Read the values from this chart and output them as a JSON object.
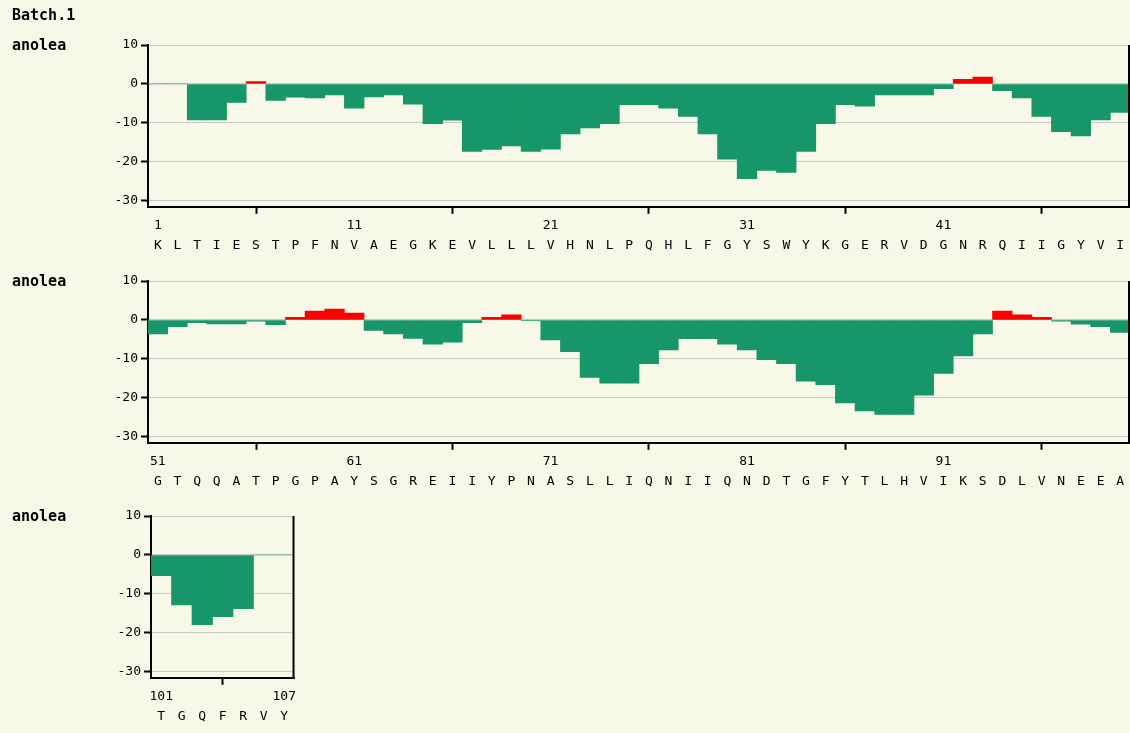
{
  "chart_data": [
    {
      "type": "bar",
      "title": "Batch.1",
      "ylabel": "anolea",
      "categories": [
        "K",
        "L",
        "T",
        "I",
        "E",
        "S",
        "T",
        "P",
        "F",
        "N",
        "V",
        "A",
        "E",
        "G",
        "K",
        "E",
        "V",
        "L",
        "L",
        "L",
        "V",
        "H",
        "N",
        "L",
        "P",
        "Q",
        "H",
        "L",
        "F",
        "G",
        "Y",
        "S",
        "W",
        "Y",
        "K",
        "G",
        "E",
        "R",
        "V",
        "D",
        "G",
        "N",
        "R",
        "Q",
        "I",
        "I",
        "G",
        "Y",
        "V",
        "I"
      ],
      "values": [
        0,
        0,
        -9.2,
        -9.2,
        -4.7,
        0.6,
        -4.2,
        -3.4,
        -3.6,
        -2.8,
        -6.2,
        -3.3,
        -2.8,
        -5.2,
        -10.2,
        -9.3,
        -17.3,
        -16.8,
        -15.9,
        -17.3,
        -16.7,
        -12.8,
        -11.3,
        -10.2,
        -5.3,
        -5.3,
        -6.2,
        -8.3,
        -12.8,
        -19.3,
        -24.3,
        -22.2,
        -22.7,
        -17.3,
        -10.2,
        -5.3,
        -5.7,
        -2.8,
        -2.8,
        -2.8,
        -1.2,
        1.2,
        1.8,
        -1.7,
        -3.6,
        -8.3,
        -12.2,
        -13.3,
        -9.2,
        -7.3
      ],
      "colors": [
        "#179669",
        "#179669",
        "#179669",
        "#179669",
        "#179669",
        "#ff0000",
        "#179669",
        "#179669",
        "#179669",
        "#179669",
        "#179669",
        "#179669",
        "#179669",
        "#179669",
        "#179669",
        "#179669",
        "#179669",
        "#179669",
        "#179669",
        "#179669",
        "#179669",
        "#179669",
        "#179669",
        "#179669",
        "#179669",
        "#179669",
        "#179669",
        "#179669",
        "#179669",
        "#179669",
        "#179669",
        "#179669",
        "#179669",
        "#179669",
        "#179669",
        "#179669",
        "#179669",
        "#179669",
        "#179669",
        "#179669",
        "#179669",
        "#ff0000",
        "#ff0000",
        "#179669",
        "#179669",
        "#179669",
        "#179669",
        "#179669",
        "#179669",
        "#179669"
      ],
      "x2lim": [
        0.5,
        50.5
      ],
      "x2ticks": [
        1,
        11,
        21,
        31,
        41
      ],
      "ylim": [
        -31.5,
        10
      ],
      "yticks": [
        10,
        0,
        -10,
        -20,
        -30
      ],
      "grid": "y"
    },
    {
      "type": "bar",
      "ylabel": "anolea",
      "categories": [
        "G",
        "T",
        "Q",
        "Q",
        "A",
        "T",
        "P",
        "G",
        "P",
        "A",
        "Y",
        "S",
        "G",
        "R",
        "E",
        "I",
        "I",
        "Y",
        "P",
        "N",
        "A",
        "S",
        "L",
        "L",
        "I",
        "Q",
        "N",
        "I",
        "I",
        "Q",
        "N",
        "D",
        "T",
        "G",
        "F",
        "Y",
        "T",
        "L",
        "H",
        "V",
        "I",
        "K",
        "S",
        "D",
        "L",
        "V",
        "N",
        "E",
        "E",
        "A"
      ],
      "values": [
        -3.6,
        -1.7,
        -0.7,
        -1,
        -1,
        -0.3,
        -1.2,
        0.7,
        2.3,
        2.8,
        1.8,
        -2.7,
        -3.6,
        -4.7,
        -6.2,
        -5.7,
        -0.7,
        0.7,
        1.3,
        -0.2,
        -5.1,
        -8.1,
        -14.7,
        -16.2,
        -16.2,
        -11.2,
        -7.7,
        -4.8,
        -4.8,
        -6.2,
        -7.7,
        -10.2,
        -11.2,
        -15.7,
        -16.6,
        -21.3,
        -23.3,
        -24.2,
        -24.2,
        -19.3,
        -13.7,
        -9.2,
        -3.6,
        2.3,
        1.3,
        0.7,
        -0.3,
        -1.1,
        -1.7,
        -3.2
      ],
      "colors": [
        "#179669",
        "#179669",
        "#179669",
        "#179669",
        "#179669",
        "#179669",
        "#179669",
        "#ff0000",
        "#ff0000",
        "#ff0000",
        "#ff0000",
        "#179669",
        "#179669",
        "#179669",
        "#179669",
        "#179669",
        "#179669",
        "#ff0000",
        "#ff0000",
        "#179669",
        "#179669",
        "#179669",
        "#179669",
        "#179669",
        "#179669",
        "#179669",
        "#179669",
        "#179669",
        "#179669",
        "#179669",
        "#179669",
        "#179669",
        "#179669",
        "#179669",
        "#179669",
        "#179669",
        "#179669",
        "#179669",
        "#179669",
        "#179669",
        "#179669",
        "#179669",
        "#179669",
        "#ff0000",
        "#ff0000",
        "#ff0000",
        "#179669",
        "#179669",
        "#179669",
        "#179669"
      ],
      "x2lim": [
        50.5,
        100.5
      ],
      "x2ticks": [
        51,
        61,
        71,
        81,
        91
      ],
      "ylim": [
        -31.5,
        10
      ],
      "yticks": [
        10,
        0,
        -10,
        -20,
        -30
      ],
      "grid": "y"
    },
    {
      "type": "bar",
      "ylabel": "anolea",
      "categories": [
        "T",
        "G",
        "Q",
        "F",
        "R",
        "V",
        "Y"
      ],
      "values": [
        -5.3,
        -12.8,
        -17.9,
        -15.8,
        -13.8,
        0,
        0
      ],
      "colors": [
        "#179669",
        "#179669",
        "#179669",
        "#179669",
        "#179669",
        "#179669",
        "#179669"
      ],
      "x2lim": [
        100.5,
        107.5
      ],
      "x2ticks": [
        101,
        107
      ],
      "ylim": [
        -31.5,
        10
      ],
      "yticks": [
        10,
        0,
        -10,
        -20,
        -30
      ],
      "grid": "y"
    }
  ]
}
